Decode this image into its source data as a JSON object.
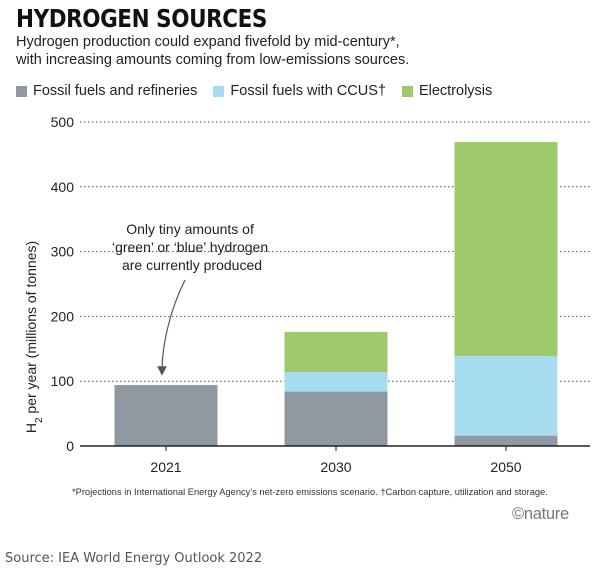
{
  "header": {
    "title": "HYDROGEN SOURCES",
    "subtitle_line1": "Hydrogen production could expand fivefold by mid-century*,",
    "subtitle_line2": "with increasing amounts coming from low-emissions sources."
  },
  "legend": [
    {
      "label": "Fossil fuels and refineries",
      "color": "#8e99a2"
    },
    {
      "label": "Fossil fuels with CCUS†",
      "color": "#a8dcf0"
    },
    {
      "label": "Electrolysis",
      "color": "#9ec96a"
    }
  ],
  "chart_data": {
    "type": "bar",
    "stacked": true,
    "categories": [
      "2021",
      "2030",
      "2050"
    ],
    "series": [
      {
        "name": "Fossil fuels and refineries",
        "values": [
          94,
          84,
          16
        ],
        "color": "#8e99a2"
      },
      {
        "name": "Fossil fuels with CCUS†",
        "values": [
          0,
          30,
          123
        ],
        "color": "#a8dcf0"
      },
      {
        "name": "Electrolysis",
        "values": [
          0,
          62,
          330
        ],
        "color": "#9ec96a"
      }
    ],
    "ylabel": "H2 per year (millions of tonnes)",
    "ylabel_main": "H",
    "ylabel_sub": "2",
    "ylabel_rest": " per year (millions of tonnes)",
    "ylim": [
      0,
      500
    ],
    "yticks": [
      "0",
      "100",
      "200",
      "300",
      "400",
      "500"
    ],
    "grid": "horizontal dotted",
    "annotation": {
      "lines": [
        "Only tiny amounts of",
        "‘green’ or ‘blue’ hydrogen",
        "are currently produced"
      ],
      "points_to": "2021"
    }
  },
  "footnote": "*Projections in International Energy Agency’s net-zero emissions scenario. †Carbon capture, utilization and storage.",
  "logo": "©nature",
  "source": "Source: IEA World Energy Outlook 2022"
}
